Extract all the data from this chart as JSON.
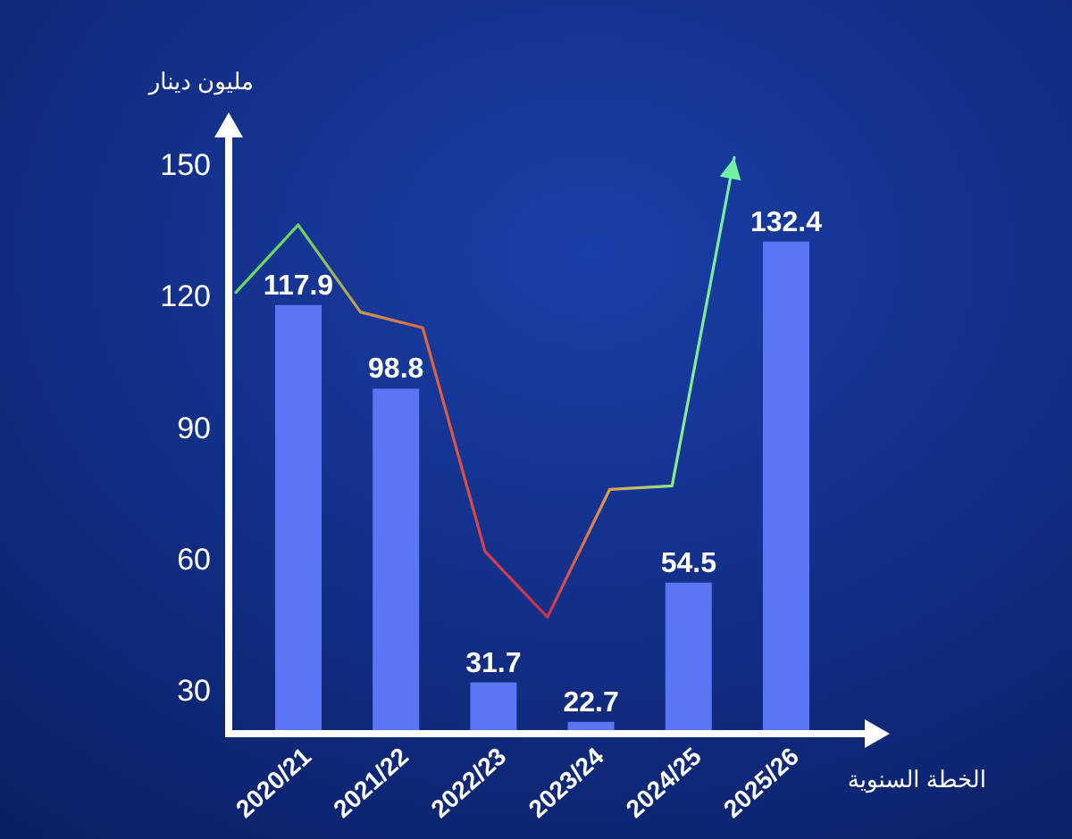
{
  "chart_data": [
    {
      "type": "bar",
      "xlabel": "الخطة السنوية",
      "ylabel": "مليون دينار",
      "categories": [
        "2020/21",
        "2021/22",
        "2022/23",
        "2023/24",
        "2024/25",
        "2025/26"
      ],
      "ylim": [
        20,
        157
      ],
      "yticks": [
        30,
        60,
        90,
        120,
        150
      ],
      "data_labels": true,
      "grid": false,
      "series": [
        {
          "color": "#5b76f4",
          "values": [
            117.9,
            98.8,
            31.7,
            22.7,
            54.5,
            132.4
          ]
        }
      ]
    },
    {
      "type": "line",
      "tick_labels": false,
      "categories": [
        null,
        null,
        null,
        null,
        null,
        null,
        null,
        null,
        null
      ],
      "ylim": [
        20,
        157
      ],
      "series": [
        {
          "colors": [
            "#6cd860",
            "#6cd860",
            "#c89a50",
            "#e06a3a",
            "#d9404a",
            "#d0304a",
            "#e0a050",
            "#90e890",
            "#70f0a0"
          ],
          "values": [
            120.8,
            136.2,
            116.3,
            112.7,
            61.6,
            46.6,
            75.8,
            76.6,
            151.6
          ]
        }
      ]
    }
  ]
}
